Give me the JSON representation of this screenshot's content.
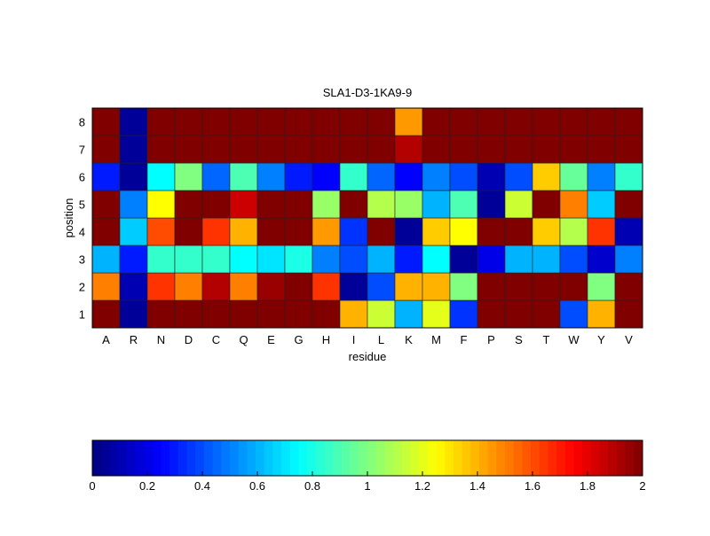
{
  "chart_data": {
    "type": "heatmap",
    "title": "SLA1-D3-1KA9-9",
    "xlabel": "residue",
    "ylabel": "position",
    "x_categories": [
      "A",
      "R",
      "N",
      "D",
      "C",
      "Q",
      "E",
      "G",
      "H",
      "I",
      "L",
      "K",
      "M",
      "F",
      "P",
      "S",
      "T",
      "W",
      "Y",
      "V"
    ],
    "y_categories": [
      "1",
      "2",
      "3",
      "4",
      "5",
      "6",
      "7",
      "8"
    ],
    "colormap": "jet",
    "clim": [
      0,
      2
    ],
    "colorbar": {
      "location": "bottom",
      "ticks": [
        "0",
        "0.2",
        "0.4",
        "0.6",
        "0.8",
        "1",
        "1.2",
        "1.4",
        "1.6",
        "1.8",
        "2"
      ]
    },
    "values_by_position": {
      "8": [
        2,
        0.05,
        2,
        2,
        2,
        2,
        2,
        2,
        2,
        2,
        2,
        1.45,
        2,
        2,
        2,
        2,
        2,
        2,
        2,
        2
      ],
      "7": [
        2,
        0.05,
        2,
        2,
        2,
        2,
        2,
        2,
        2,
        2,
        2,
        1.9,
        2,
        2,
        2,
        2,
        2,
        2,
        2,
        2
      ],
      "6": [
        0.3,
        0.05,
        0.75,
        1.0,
        0.45,
        0.9,
        0.5,
        0.3,
        0.25,
        0.85,
        0.45,
        0.25,
        0.5,
        0.4,
        0.1,
        0.4,
        1.35,
        0.95,
        0.5,
        0.85
      ],
      "5": [
        2,
        0.5,
        1.25,
        2,
        2,
        1.85,
        2,
        2,
        1.05,
        2,
        1.1,
        1.05,
        0.6,
        0.9,
        0.05,
        1.15,
        2,
        1.5,
        0.65,
        2
      ],
      "4": [
        2,
        0.65,
        1.6,
        2,
        1.65,
        1.4,
        2,
        2,
        1.45,
        0.35,
        2,
        0.05,
        1.35,
        1.25,
        2,
        2,
        1.35,
        1.1,
        1.65,
        0.1
      ],
      "3": [
        0.6,
        0.3,
        0.85,
        0.85,
        0.85,
        0.75,
        0.7,
        0.8,
        0.5,
        0.4,
        0.6,
        0.3,
        0.75,
        0.05,
        0.2,
        0.6,
        0.6,
        0.4,
        0.15,
        0.5
      ],
      "2": [
        1.5,
        0.1,
        1.65,
        1.5,
        1.9,
        1.5,
        1.95,
        2,
        1.65,
        0.05,
        0.4,
        1.4,
        1.4,
        1.0,
        2,
        2,
        2,
        2,
        1.0,
        2
      ],
      "1": [
        2,
        0.05,
        2,
        2,
        2,
        2,
        2,
        2,
        2,
        1.4,
        1.15,
        0.6,
        1.2,
        0.35,
        2,
        2,
        2,
        0.4,
        1.4,
        2
      ]
    }
  }
}
